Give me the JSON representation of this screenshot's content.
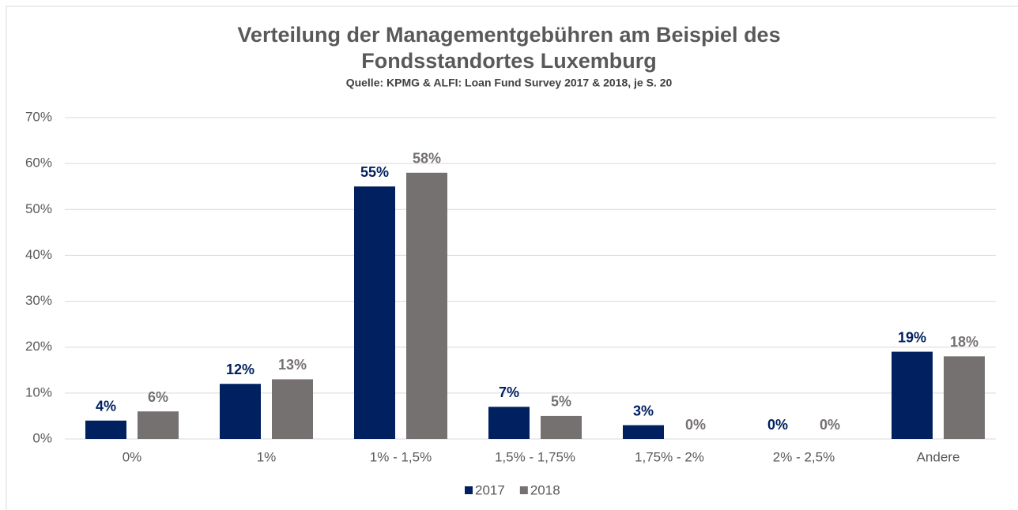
{
  "chart_data": {
    "type": "bar",
    "title": [
      "Verteilung der Managementgebühren am Beispiel des",
      "Fondsstandortes Luxemburg"
    ],
    "subtitle": "Quelle: KPMG & ALFI: Loan Fund Survey 2017 & 2018, je S. 20",
    "categories": [
      "0%",
      "1%",
      "1% - 1,5%",
      "1,5% - 1,75%",
      "1,75% - 2%",
      "2% - 2,5%",
      "Andere"
    ],
    "series": [
      {
        "name": "2017",
        "color": "#002060",
        "values": [
          4,
          12,
          55,
          7,
          3,
          0,
          19
        ],
        "value_labels": [
          "4%",
          "12%",
          "55%",
          "7%",
          "3%",
          "0%",
          "19%"
        ]
      },
      {
        "name": "2018",
        "color": "#767171",
        "values": [
          6,
          13,
          58,
          5,
          0,
          0,
          18
        ],
        "value_labels": [
          "6%",
          "13%",
          "58%",
          "5%",
          "0%",
          "0%",
          "18%"
        ]
      }
    ],
    "ylim": [
      0,
      70
    ],
    "yticks": [
      {
        "value": 0,
        "label": "0%"
      },
      {
        "value": 10,
        "label": "10%"
      },
      {
        "value": 20,
        "label": "20%"
      },
      {
        "value": 30,
        "label": "30%"
      },
      {
        "value": 40,
        "label": "40%"
      },
      {
        "value": 50,
        "label": "50%"
      },
      {
        "value": 60,
        "label": "60%"
      },
      {
        "value": 70,
        "label": "70%"
      }
    ],
    "grid": true,
    "legend": "bottom"
  }
}
